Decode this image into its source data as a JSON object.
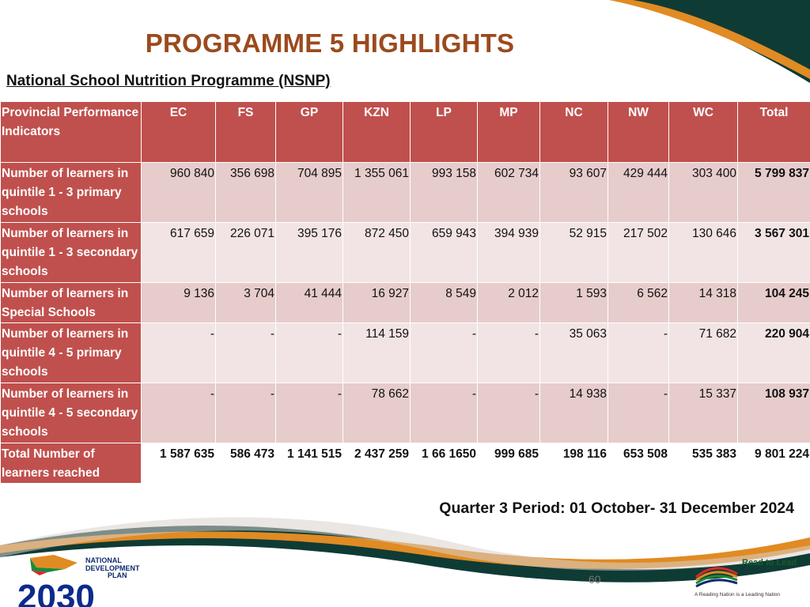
{
  "slide": {
    "title": "PROGRAMME 5 HIGHLIGHTS",
    "subtitle": "National School Nutrition Programme (NSNP)",
    "period": "Quarter 3 Period: 01 October- 31 December 2024",
    "page_number": "60"
  },
  "table": {
    "headers": [
      "Provincial Performance Indicators",
      "EC",
      "FS",
      "GP",
      "KZN",
      "LP",
      "MP",
      "NC",
      "NW",
      "WC",
      "Total"
    ],
    "rows": [
      {
        "label": "Number of learners in quintile 1 - 3 primary schools",
        "values": [
          "960 840",
          "356 698",
          "704 895",
          "1 355 061",
          "993 158",
          "602 734",
          "93 607",
          "429 444",
          "303 400",
          "5 799 837"
        ]
      },
      {
        "label": "Number of learners in quintile 1 - 3 secondary schools",
        "values": [
          "617 659",
          "226 071",
          "395 176",
          "872 450",
          "659 943",
          "394 939",
          "52 915",
          "217 502",
          "130 646",
          "3 567 301"
        ]
      },
      {
        "label": "Number of learners in Special Schools",
        "values": [
          "9 136",
          "3 704",
          "41 444",
          "16 927",
          "8 549",
          "2 012",
          "1 593",
          "6 562",
          "14 318",
          "104 245"
        ]
      },
      {
        "label": "Number of learners in quintile 4 - 5 primary schools",
        "values": [
          "-",
          "-",
          "-",
          "114 159",
          "-",
          "-",
          "35 063",
          "-",
          "71 682",
          "220 904"
        ]
      },
      {
        "label": "Number of learners in quintile 4 - 5 secondary schools",
        "values": [
          "-",
          "-",
          "-",
          "78 662",
          "-",
          "-",
          "14 938",
          "-",
          "15 337",
          "108 937"
        ]
      },
      {
        "label": "Total Number of learners reached",
        "values": [
          "1 587 635",
          "586 473",
          "1 141 515",
          "2 437 259",
          "1 66 1650",
          "999 685",
          "198 116",
          "653 508",
          "535 383",
          "9 801 224"
        ]
      }
    ]
  },
  "logos": {
    "ndp": {
      "line1": "NATIONAL",
      "line2": "DEVELOPMENT",
      "line3": "PLAN",
      "year": "2030"
    },
    "read_to_lead": {
      "title": "Read to Lead",
      "tagline": "A Reading Nation is a Leading Nation"
    }
  },
  "colors": {
    "title": "#9b4a1e",
    "header_fill": "#c0504d",
    "row_dark": "#e6cccb",
    "row_light": "#f2e4e4",
    "swoosh_orange": "#e08b23",
    "swoosh_green": "#0f3b35"
  }
}
